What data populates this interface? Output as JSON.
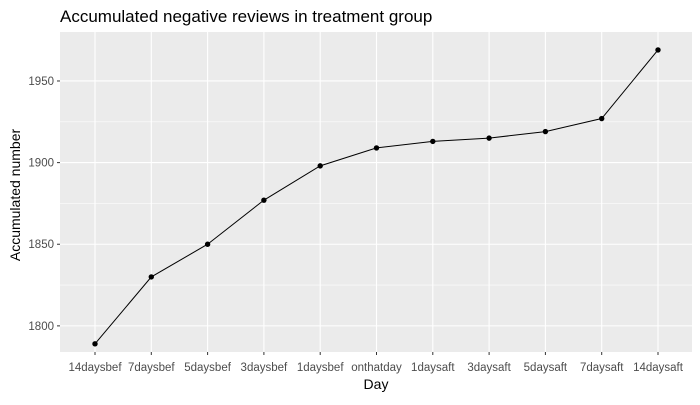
{
  "chart_data": {
    "type": "line",
    "title": "Accumulated negative reviews in treatment group",
    "xlabel": "Day",
    "ylabel": "Accumulated number",
    "categories": [
      "14daysbef",
      "7daysbef",
      "5daysbef",
      "3daysbef",
      "1daysbef",
      "onthatday",
      "1daysaft",
      "3daysaft",
      "5daysaft",
      "7daysaft",
      "14daysaft"
    ],
    "series": [
      {
        "values": [
          1789,
          1830,
          1850,
          1877,
          1898,
          1909,
          1913,
          1915,
          1919,
          1927,
          1969
        ]
      }
    ],
    "ylim": [
      1784,
      1980
    ],
    "yticks": [
      1800,
      1850,
      1900,
      1950
    ],
    "grid": true,
    "legend": "none",
    "colors": {
      "panel": "#ebebeb",
      "grid_major": "#ffffff",
      "line": "#000000",
      "point": "#000000",
      "tick_label": "#4d4d4d"
    }
  }
}
